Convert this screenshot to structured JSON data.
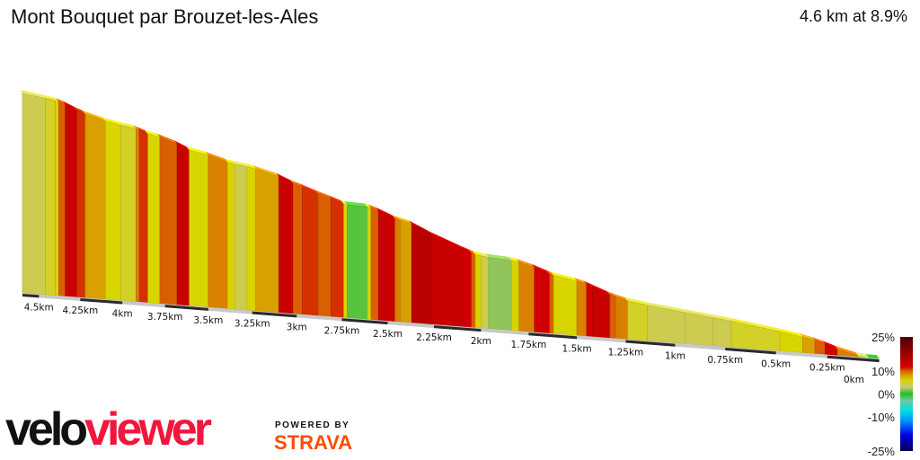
{
  "header": {
    "title": "Mont Bouquet par Brouzet-les-Ales",
    "summary": "4.6 km at 8.9%"
  },
  "chart_data": {
    "type": "area",
    "title": "Mont Bouquet par Brouzet-les-Ales",
    "subtitle": "4.6 km at 8.9%",
    "x_direction": "descending (summit on left, start on right)",
    "xlim": [
      0,
      4.6
    ],
    "x_tick_labels": [
      "4.5km",
      "4.25km",
      "4km",
      "3.75km",
      "3.5km",
      "3.25km",
      "3km",
      "2.75km",
      "2.5km",
      "2.25km",
      "2km",
      "1.75km",
      "1.5km",
      "1.25km",
      "1km",
      "0.75km",
      "0.5km",
      "0.25km",
      "0km"
    ],
    "x_ticks": [
      4.5,
      4.25,
      4,
      3.75,
      3.5,
      3.25,
      3,
      2.75,
      2.5,
      2.25,
      2,
      1.75,
      1.5,
      1.25,
      1,
      0.75,
      0.5,
      0.25,
      0
    ],
    "segments": [
      {
        "from": 4.6,
        "to": 4.46,
        "grade": 4
      },
      {
        "from": 4.46,
        "to": 4.4,
        "grade": 5
      },
      {
        "from": 4.4,
        "to": 4.38,
        "grade": 6
      },
      {
        "from": 4.38,
        "to": 4.34,
        "grade": 10
      },
      {
        "from": 4.34,
        "to": 4.27,
        "grade": 13
      },
      {
        "from": 4.27,
        "to": 4.22,
        "grade": 11
      },
      {
        "from": 4.22,
        "to": 4.1,
        "grade": 8
      },
      {
        "from": 4.1,
        "to": 4.01,
        "grade": 6
      },
      {
        "from": 4.01,
        "to": 3.92,
        "grade": 5
      },
      {
        "from": 3.92,
        "to": 3.9,
        "grade": 9
      },
      {
        "from": 3.9,
        "to": 3.85,
        "grade": 11
      },
      {
        "from": 3.85,
        "to": 3.78,
        "grade": 6
      },
      {
        "from": 3.78,
        "to": 3.68,
        "grade": 10
      },
      {
        "from": 3.68,
        "to": 3.61,
        "grade": 13
      },
      {
        "from": 3.61,
        "to": 3.5,
        "grade": 6
      },
      {
        "from": 3.5,
        "to": 3.39,
        "grade": 9
      },
      {
        "from": 3.39,
        "to": 3.35,
        "grade": 6
      },
      {
        "from": 3.35,
        "to": 3.28,
        "grade": 4
      },
      {
        "from": 3.28,
        "to": 3.23,
        "grade": 6
      },
      {
        "from": 3.23,
        "to": 3.1,
        "grade": 8
      },
      {
        "from": 3.1,
        "to": 3.02,
        "grade": 13
      },
      {
        "from": 3.02,
        "to": 2.97,
        "grade": 10
      },
      {
        "from": 2.97,
        "to": 2.88,
        "grade": 11
      },
      {
        "from": 2.88,
        "to": 2.81,
        "grade": 10
      },
      {
        "from": 2.81,
        "to": 2.74,
        "grade": 11
      },
      {
        "from": 2.74,
        "to": 2.72,
        "grade": 6
      },
      {
        "from": 2.72,
        "to": 2.61,
        "grade": 1
      },
      {
        "from": 2.61,
        "to": 2.59,
        "grade": 6
      },
      {
        "from": 2.59,
        "to": 2.55,
        "grade": 10
      },
      {
        "from": 2.55,
        "to": 2.46,
        "grade": 13
      },
      {
        "from": 2.46,
        "to": 2.43,
        "grade": 9
      },
      {
        "from": 2.43,
        "to": 2.37,
        "grade": 8
      },
      {
        "from": 2.37,
        "to": 2.26,
        "grade": 15
      },
      {
        "from": 2.26,
        "to": 2.1,
        "grade": 13
      },
      {
        "from": 2.1,
        "to": 2.05,
        "grade": 12
      },
      {
        "from": 2.05,
        "to": 2.03,
        "grade": 10
      },
      {
        "from": 2.03,
        "to": 2.0,
        "grade": 6
      },
      {
        "from": 2.0,
        "to": 1.96,
        "grade": 4
      },
      {
        "from": 1.96,
        "to": 1.84,
        "grade": 2
      },
      {
        "from": 1.84,
        "to": 1.8,
        "grade": 6
      },
      {
        "from": 1.8,
        "to": 1.72,
        "grade": 9
      },
      {
        "from": 1.72,
        "to": 1.64,
        "grade": 12
      },
      {
        "from": 1.64,
        "to": 1.62,
        "grade": 10
      },
      {
        "from": 1.62,
        "to": 1.5,
        "grade": 6
      },
      {
        "from": 1.5,
        "to": 1.45,
        "grade": 9
      },
      {
        "from": 1.45,
        "to": 1.42,
        "grade": 12
      },
      {
        "from": 1.42,
        "to": 1.33,
        "grade": 13
      },
      {
        "from": 1.33,
        "to": 1.3,
        "grade": 10
      },
      {
        "from": 1.3,
        "to": 1.24,
        "grade": 9
      },
      {
        "from": 1.24,
        "to": 1.14,
        "grade": 5
      },
      {
        "from": 1.14,
        "to": 0.95,
        "grade": 4
      },
      {
        "from": 0.95,
        "to": 0.81,
        "grade": 4
      },
      {
        "from": 0.81,
        "to": 0.72,
        "grade": 4
      },
      {
        "from": 0.72,
        "to": 0.48,
        "grade": 5
      },
      {
        "from": 0.48,
        "to": 0.37,
        "grade": 6
      },
      {
        "from": 0.37,
        "to": 0.31,
        "grade": 8
      },
      {
        "from": 0.31,
        "to": 0.26,
        "grade": 10
      },
      {
        "from": 0.26,
        "to": 0.2,
        "grade": 12
      },
      {
        "from": 0.2,
        "to": 0.1,
        "grade": 9
      },
      {
        "from": 0.1,
        "to": 0.05,
        "grade": 4
      },
      {
        "from": 0.05,
        "to": 0.0,
        "grade": 0
      }
    ],
    "colorbar": {
      "labels": [
        "25%",
        "10%",
        "0%",
        "-10%",
        "-25%"
      ],
      "values": [
        25,
        10,
        0,
        -10,
        -25
      ],
      "stops": [
        {
          "v": -25,
          "c": "#000050"
        },
        {
          "v": -18,
          "c": "#0000e0"
        },
        {
          "v": -12,
          "c": "#0090ff"
        },
        {
          "v": -7,
          "c": "#00e0e0"
        },
        {
          "v": -3,
          "c": "#70c8a0"
        },
        {
          "v": 0,
          "c": "#20c020"
        },
        {
          "v": 3,
          "c": "#c8c878"
        },
        {
          "v": 6,
          "c": "#d8d400"
        },
        {
          "v": 8,
          "c": "#d8a000"
        },
        {
          "v": 10,
          "c": "#d86000"
        },
        {
          "v": 12,
          "c": "#d00000"
        },
        {
          "v": 15,
          "c": "#b80000"
        },
        {
          "v": 25,
          "c": "#4a0000"
        }
      ]
    }
  },
  "branding": {
    "logo_part1": "velo",
    "logo_part2": "viewer",
    "powered_by": "POWERED BY",
    "strava": "STRAVA"
  }
}
